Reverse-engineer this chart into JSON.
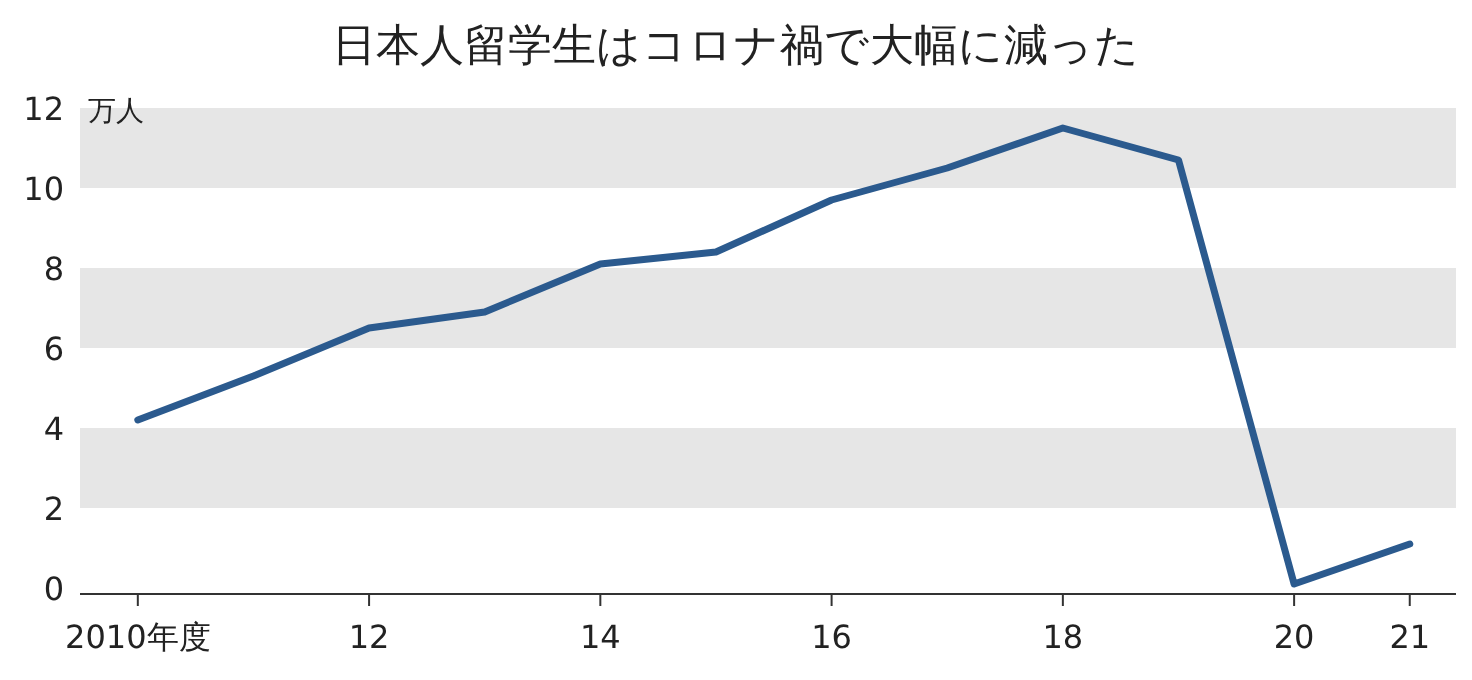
{
  "chart_data": {
    "type": "line",
    "title": "日本人留学生はコロナ禍で大幅に減った",
    "ylabel": "万人",
    "x": [
      2010,
      2011,
      2012,
      2013,
      2014,
      2015,
      2016,
      2017,
      2018,
      2019,
      2020,
      2021
    ],
    "series": [
      {
        "color": "#2b5a8e",
        "values": [
          4.2,
          5.3,
          6.5,
          6.9,
          8.1,
          8.4,
          9.7,
          10.5,
          11.5,
          10.7,
          0.1,
          1.1
        ]
      }
    ],
    "xlim": [
      2009.5,
      2021.4
    ],
    "xticks": [
      {
        "value": 2010,
        "label": "2010年度"
      },
      {
        "value": 2012,
        "label": "12"
      },
      {
        "value": 2014,
        "label": "14"
      },
      {
        "value": 2016,
        "label": "16"
      },
      {
        "value": 2018,
        "label": "18"
      },
      {
        "value": 2020,
        "label": "20"
      },
      {
        "value": 2021,
        "label": "21"
      }
    ],
    "ylim": [
      0,
      12
    ],
    "yticks": [
      0,
      2,
      4,
      6,
      8,
      10,
      12
    ],
    "bands": [
      {
        "axis": "y",
        "from": 2,
        "to": 4,
        "color": "#e6e6e6"
      },
      {
        "axis": "y",
        "from": 6,
        "to": 8,
        "color": "#e6e6e6"
      },
      {
        "axis": "y",
        "from": 10,
        "to": 12,
        "color": "#e6e6e6"
      }
    ],
    "grid": false,
    "marker": "none",
    "line_style": "solid"
  }
}
